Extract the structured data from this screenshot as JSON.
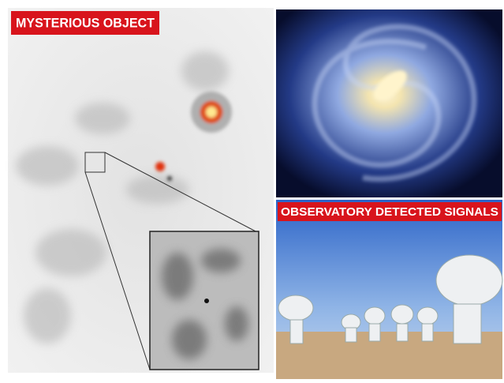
{
  "panels": [
    {
      "label": "MYSTERIOUS OBJECT"
    },
    {
      "label": "OBSERVATORY DETECTED SIGNALS"
    }
  ]
}
